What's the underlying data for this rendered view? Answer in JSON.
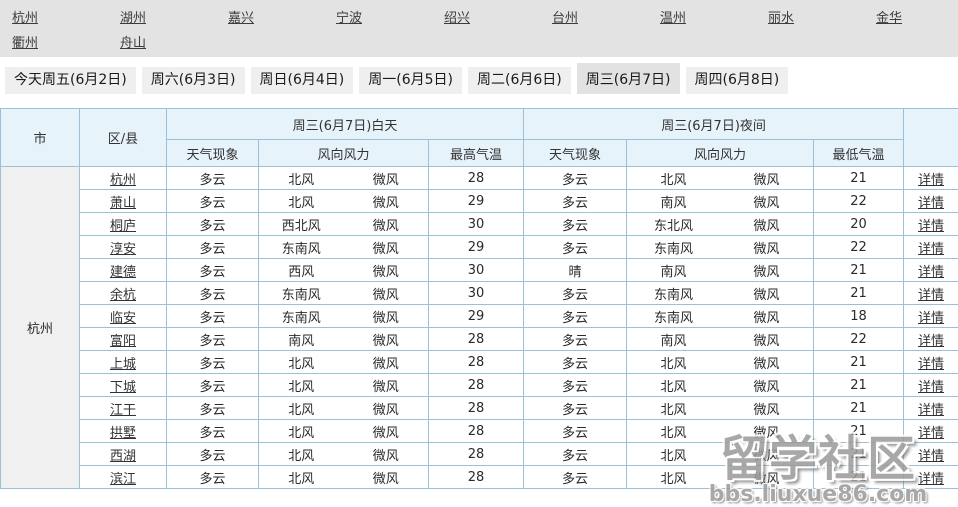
{
  "colors": {
    "nav_bg": "#e3e3e3",
    "tab_bg": "#efefef",
    "tab_active_bg": "#e2e2e2",
    "table_border": "#9cc0d6",
    "table_header_bg": "#e7f3fa",
    "city_cell_bg": "#f0f0f0",
    "row_bg": "#ffffff"
  },
  "city_nav": {
    "rows": [
      [
        "杭州",
        "湖州",
        "嘉兴",
        "宁波",
        "绍兴",
        "台州",
        "温州",
        "丽水",
        "金华"
      ],
      [
        "衢州",
        "舟山"
      ]
    ]
  },
  "tabs": [
    {
      "label": "今天周五(6月2日)",
      "active": false
    },
    {
      "label": "周六(6月3日)",
      "active": false
    },
    {
      "label": "周日(6月4日)",
      "active": false
    },
    {
      "label": "周一(6月5日)",
      "active": false
    },
    {
      "label": "周二(6月6日)",
      "active": false
    },
    {
      "label": "周三(6月7日)",
      "active": true
    },
    {
      "label": "周四(6月8日)",
      "active": false
    }
  ],
  "table": {
    "headers": {
      "city": "市",
      "district": "区/县",
      "day_group": "周三(6月7日)白天",
      "night_group": "周三(6月7日)夜间",
      "weather": "天气现象",
      "wind": "风向风力",
      "max_temp": "最高气温",
      "min_temp": "最低气温"
    },
    "city_name": "杭州",
    "detail_label": "详情",
    "rows": [
      {
        "district": "杭州",
        "day_weather": "多云",
        "day_wind_dir": "北风",
        "day_wind_force": "微风",
        "day_temp": "28",
        "night_weather": "多云",
        "night_wind_dir": "北风",
        "night_wind_force": "微风",
        "night_temp": "21"
      },
      {
        "district": "萧山",
        "day_weather": "多云",
        "day_wind_dir": "北风",
        "day_wind_force": "微风",
        "day_temp": "29",
        "night_weather": "多云",
        "night_wind_dir": "南风",
        "night_wind_force": "微风",
        "night_temp": "22"
      },
      {
        "district": "桐庐",
        "day_weather": "多云",
        "day_wind_dir": "西北风",
        "day_wind_force": "微风",
        "day_temp": "30",
        "night_weather": "多云",
        "night_wind_dir": "东北风",
        "night_wind_force": "微风",
        "night_temp": "20"
      },
      {
        "district": "淳安",
        "day_weather": "多云",
        "day_wind_dir": "东南风",
        "day_wind_force": "微风",
        "day_temp": "29",
        "night_weather": "多云",
        "night_wind_dir": "东南风",
        "night_wind_force": "微风",
        "night_temp": "22"
      },
      {
        "district": "建德",
        "day_weather": "多云",
        "day_wind_dir": "西风",
        "day_wind_force": "微风",
        "day_temp": "30",
        "night_weather": "晴",
        "night_wind_dir": "南风",
        "night_wind_force": "微风",
        "night_temp": "21"
      },
      {
        "district": "余杭",
        "day_weather": "多云",
        "day_wind_dir": "东南风",
        "day_wind_force": "微风",
        "day_temp": "30",
        "night_weather": "多云",
        "night_wind_dir": "东南风",
        "night_wind_force": "微风",
        "night_temp": "21"
      },
      {
        "district": "临安",
        "day_weather": "多云",
        "day_wind_dir": "东南风",
        "day_wind_force": "微风",
        "day_temp": "29",
        "night_weather": "多云",
        "night_wind_dir": "东南风",
        "night_wind_force": "微风",
        "night_temp": "18"
      },
      {
        "district": "富阳",
        "day_weather": "多云",
        "day_wind_dir": "南风",
        "day_wind_force": "微风",
        "day_temp": "28",
        "night_weather": "多云",
        "night_wind_dir": "南风",
        "night_wind_force": "微风",
        "night_temp": "22"
      },
      {
        "district": "上城",
        "day_weather": "多云",
        "day_wind_dir": "北风",
        "day_wind_force": "微风",
        "day_temp": "28",
        "night_weather": "多云",
        "night_wind_dir": "北风",
        "night_wind_force": "微风",
        "night_temp": "21"
      },
      {
        "district": "下城",
        "day_weather": "多云",
        "day_wind_dir": "北风",
        "day_wind_force": "微风",
        "day_temp": "28",
        "night_weather": "多云",
        "night_wind_dir": "北风",
        "night_wind_force": "微风",
        "night_temp": "21"
      },
      {
        "district": "江干",
        "day_weather": "多云",
        "day_wind_dir": "北风",
        "day_wind_force": "微风",
        "day_temp": "28",
        "night_weather": "多云",
        "night_wind_dir": "北风",
        "night_wind_force": "微风",
        "night_temp": "21"
      },
      {
        "district": "拱墅",
        "day_weather": "多云",
        "day_wind_dir": "北风",
        "day_wind_force": "微风",
        "day_temp": "28",
        "night_weather": "多云",
        "night_wind_dir": "北风",
        "night_wind_force": "微风",
        "night_temp": "21"
      },
      {
        "district": "西湖",
        "day_weather": "多云",
        "day_wind_dir": "北风",
        "day_wind_force": "微风",
        "day_temp": "28",
        "night_weather": "多云",
        "night_wind_dir": "北风",
        "night_wind_force": "微风",
        "night_temp": "21"
      },
      {
        "district": "滨江",
        "day_weather": "多云",
        "day_wind_dir": "北风",
        "day_wind_force": "微风",
        "day_temp": "28",
        "night_weather": "多云",
        "night_wind_dir": "北风",
        "night_wind_force": "微风",
        "night_temp": "21"
      }
    ]
  },
  "watermark": {
    "title": "留学社区",
    "subtitle": "bbs.liuxue86.com"
  }
}
